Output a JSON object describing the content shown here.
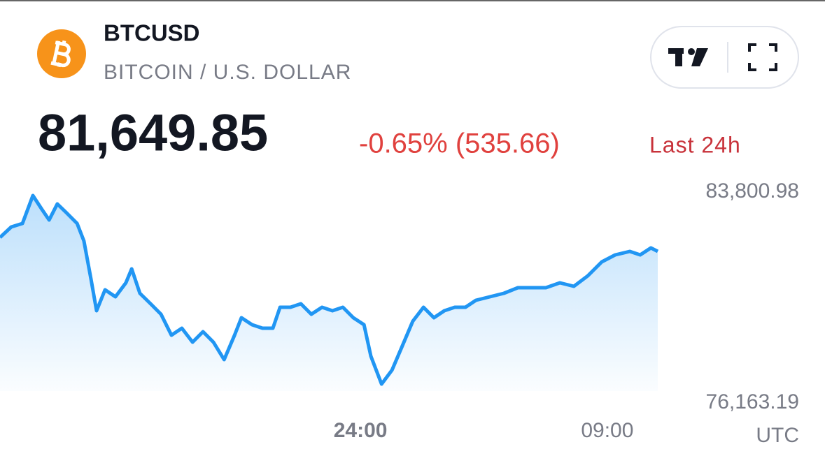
{
  "header": {
    "symbol": "BTCUSD",
    "name": "BITCOIN / U.S. DOLLAR"
  },
  "quote": {
    "price": "81,649.85",
    "change": "-0.65% (535.66)",
    "period": "Last 24h"
  },
  "chart_data": {
    "type": "line",
    "x": [
      -13.14,
      -12.73,
      -12.32,
      -11.94,
      -11.61,
      -11.35,
      -11.05,
      -10.71,
      -10.33,
      -10.08,
      -9.82,
      -9.62,
      -9.31,
      -8.93,
      -8.55,
      -8.34,
      -8.04,
      -7.65,
      -7.27,
      -6.89,
      -6.51,
      -6.12,
      -5.74,
      -5.36,
      -4.97,
      -4.59,
      -4.34,
      -3.95,
      -3.57,
      -3.19,
      -2.93,
      -2.55,
      -2.17,
      -1.79,
      -1.4,
      -1.02,
      -0.64,
      -0.26,
      0.13,
      0.38,
      0.77,
      1.15,
      1.53,
      1.91,
      2.3,
      2.68,
      3.06,
      3.44,
      3.83,
      4.21,
      4.72,
      5.23,
      5.74,
      6.25,
      6.76,
      7.27,
      7.78,
      8.29,
      8.8,
      9.29,
      9.82,
      10.2,
      10.59,
      10.84
    ],
    "series": [
      {
        "color": "#2196f3",
        "values": [
          82091,
          82505,
          82643,
          83746,
          83194,
          82781,
          83415,
          83057,
          82643,
          81954,
          80437,
          79196,
          80023,
          79748,
          80299,
          80851,
          79885,
          79472,
          79058,
          78231,
          78507,
          77955,
          78369,
          77955,
          77266,
          78231,
          78920,
          78645,
          78507,
          78507,
          79334,
          79334,
          79472,
          79058,
          79334,
          79196,
          79334,
          78920,
          78645,
          77404,
          76301,
          76852,
          77817,
          78783,
          79334,
          78920,
          79196,
          79334,
          79334,
          79610,
          79748,
          79885,
          80106,
          80106,
          80106,
          80299,
          80161,
          80575,
          81126,
          81402,
          81540,
          81402,
          81678,
          81540
        ]
      }
    ],
    "xlim": [
      -13.14,
      10.84
    ],
    "ylim": [
      76163.19,
      83800.98
    ],
    "xticks": [
      {
        "value": 0,
        "label": "24:00"
      },
      {
        "value": 9,
        "label": "09:00"
      }
    ],
    "yticks": [
      {
        "value": 83800.98,
        "label": "83,800.98"
      },
      {
        "value": 76163.19,
        "label": "76,163.19"
      }
    ],
    "xlabel": "UTC"
  }
}
